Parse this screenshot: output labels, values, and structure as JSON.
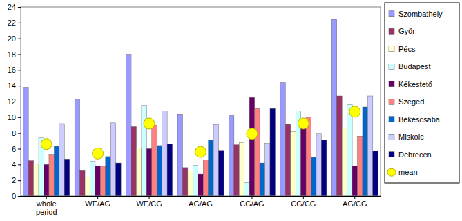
{
  "chart_data": {
    "type": "bar",
    "categories": [
      "whole period",
      "WE/AG",
      "WE/CG",
      "AG/AG",
      "CG/AG",
      "CG/CG",
      "AG/CG"
    ],
    "series": [
      {
        "name": "Szombathely",
        "color": "#9999ff",
        "values": [
          13.8,
          12.3,
          18.0,
          10.4,
          10.2,
          14.4,
          22.4
        ]
      },
      {
        "name": "Győr",
        "color": "#993366",
        "values": [
          4.5,
          3.3,
          8.8,
          3.6,
          6.5,
          9.1,
          12.7
        ]
      },
      {
        "name": "Pécs",
        "color": "#ffffcc",
        "values": [
          4.1,
          2.4,
          6.1,
          3.2,
          6.8,
          8.2,
          8.6
        ]
      },
      {
        "name": "Budapest",
        "color": "#ccffff",
        "values": [
          7.4,
          4.4,
          11.5,
          3.9,
          1.7,
          10.8,
          11.6
        ]
      },
      {
        "name": "Kékestető",
        "color": "#660066",
        "values": [
          4.0,
          3.8,
          6.0,
          2.8,
          12.5,
          9.1,
          3.8
        ]
      },
      {
        "name": "Szeged",
        "color": "#ff8080",
        "values": [
          5.3,
          3.8,
          9.0,
          4.6,
          11.1,
          10.0,
          7.6
        ]
      },
      {
        "name": "Békéscsaba",
        "color": "#0066cc",
        "values": [
          6.3,
          5.0,
          6.4,
          7.1,
          4.2,
          4.9,
          11.3
        ]
      },
      {
        "name": "Miskolc",
        "color": "#ccccff",
        "values": [
          9.2,
          9.3,
          10.8,
          9.1,
          6.7,
          7.9,
          12.7
        ]
      },
      {
        "name": "Debrecen",
        "color": "#000080",
        "values": [
          4.7,
          4.2,
          6.6,
          5.8,
          11.1,
          7.1,
          5.7
        ]
      },
      {
        "name": "mean",
        "color": "#ffff00",
        "type": "scatter",
        "marker": "circle",
        "values": [
          6.6,
          5.4,
          9.2,
          5.6,
          7.9,
          9.2,
          10.7
        ]
      }
    ],
    "ylim": [
      0,
      24
    ],
    "yticks": [
      0,
      2,
      4,
      6,
      8,
      10,
      12,
      14,
      16,
      18,
      20,
      22,
      24
    ],
    "grid": false,
    "legend": "right"
  }
}
